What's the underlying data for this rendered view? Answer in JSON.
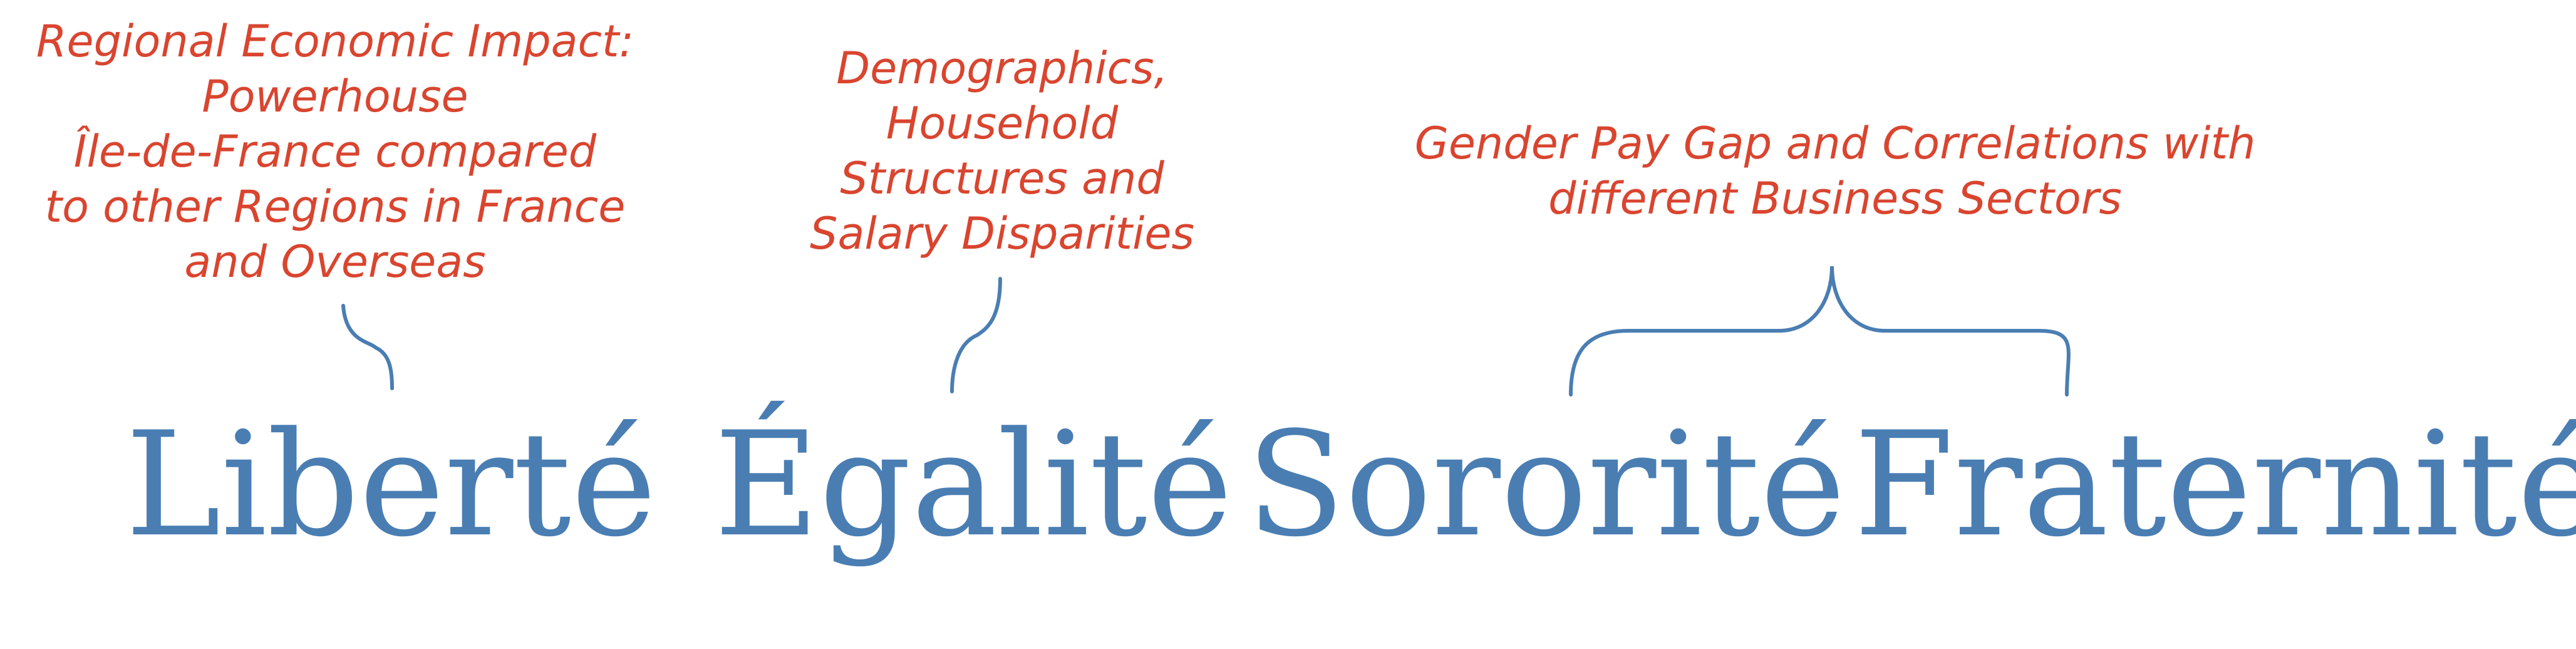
{
  "annotations": [
    {
      "lines": [
        "Regional Economic Impact:",
        "Powerhouse",
        "Île-de-France compared",
        "to other Regions in France",
        "and Overseas"
      ]
    },
    {
      "lines": [
        "Demographics,",
        "Household",
        "Structures and",
        "Salary Disparities"
      ]
    },
    {
      "lines": [
        "Gender Pay Gap and Correlations with",
        "different Business Sectors"
      ]
    }
  ],
  "words": [
    "Liberté",
    "Égalité",
    "Sororité",
    "Fraternité"
  ],
  "colors": {
    "annotation_text": "#d9452f",
    "words_and_connectors": "#4a7eb3",
    "background": "#ffffff"
  }
}
